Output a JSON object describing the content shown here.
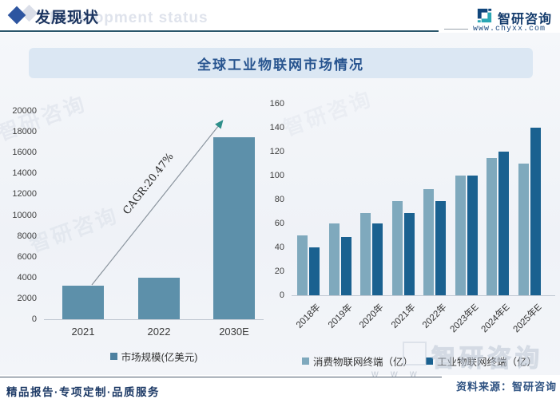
{
  "header": {
    "section_title": "发展现状",
    "brand": "智研咨询",
    "website": "www.chyxx.com"
  },
  "banner": {
    "title": "全球工业物联网市场情况"
  },
  "chart_data": [
    {
      "type": "bar",
      "title": "全球工业物联网市场规模",
      "categories": [
        "2021",
        "2022",
        "2030E"
      ],
      "values": [
        3200,
        4000,
        17500
      ],
      "series_name": "市场规模(亿美元)",
      "xlabel": "",
      "ylabel": "",
      "ylim": [
        0,
        20000
      ],
      "ystep": 2000,
      "grid": false,
      "legend_position": "bottom",
      "bar_color": "#5d90aa",
      "legend_swatch_color": "#4d80a0",
      "annotation": "CAGR:20.47%",
      "annotation_arrow_color": "#2e8f8a"
    },
    {
      "type": "bar",
      "title": "全球物联网终端数量",
      "categories": [
        "2018年",
        "2019年",
        "2020年",
        "2021年",
        "2022年",
        "2023年E",
        "2024年E",
        "2025年E"
      ],
      "series": [
        {
          "name": "消费物联网终端（亿）",
          "color": "#7fa9bd",
          "values": [
            50,
            60,
            69,
            79,
            89,
            100,
            115,
            110
          ]
        },
        {
          "name": "工业物联网终端（亿）",
          "color": "#1a6190",
          "values": [
            40,
            49,
            60,
            69,
            79,
            100,
            120,
            140
          ]
        }
      ],
      "xlabel": "",
      "ylabel": "",
      "ylim": [
        0,
        160
      ],
      "ystep": 20,
      "grid": false,
      "legend_position": "bottom"
    }
  ],
  "footer": {
    "slogan": "精品报告·专项定制·品质服务",
    "source": "资料来源：智研咨询"
  },
  "watermarks": {
    "header": "Development status",
    "brand_outline": "智研咨询",
    "www": "w w w"
  },
  "colors": {
    "navy_text": "#1c3560",
    "banner_bg": "#dbe7f3",
    "banner_text": "#27548f",
    "header_rule": "#2a566b",
    "logo_navy": "#10467c",
    "logo_teal": "#2ba7b4",
    "axis_text": "#3f3f3f",
    "baseline": "#c2cad4"
  }
}
